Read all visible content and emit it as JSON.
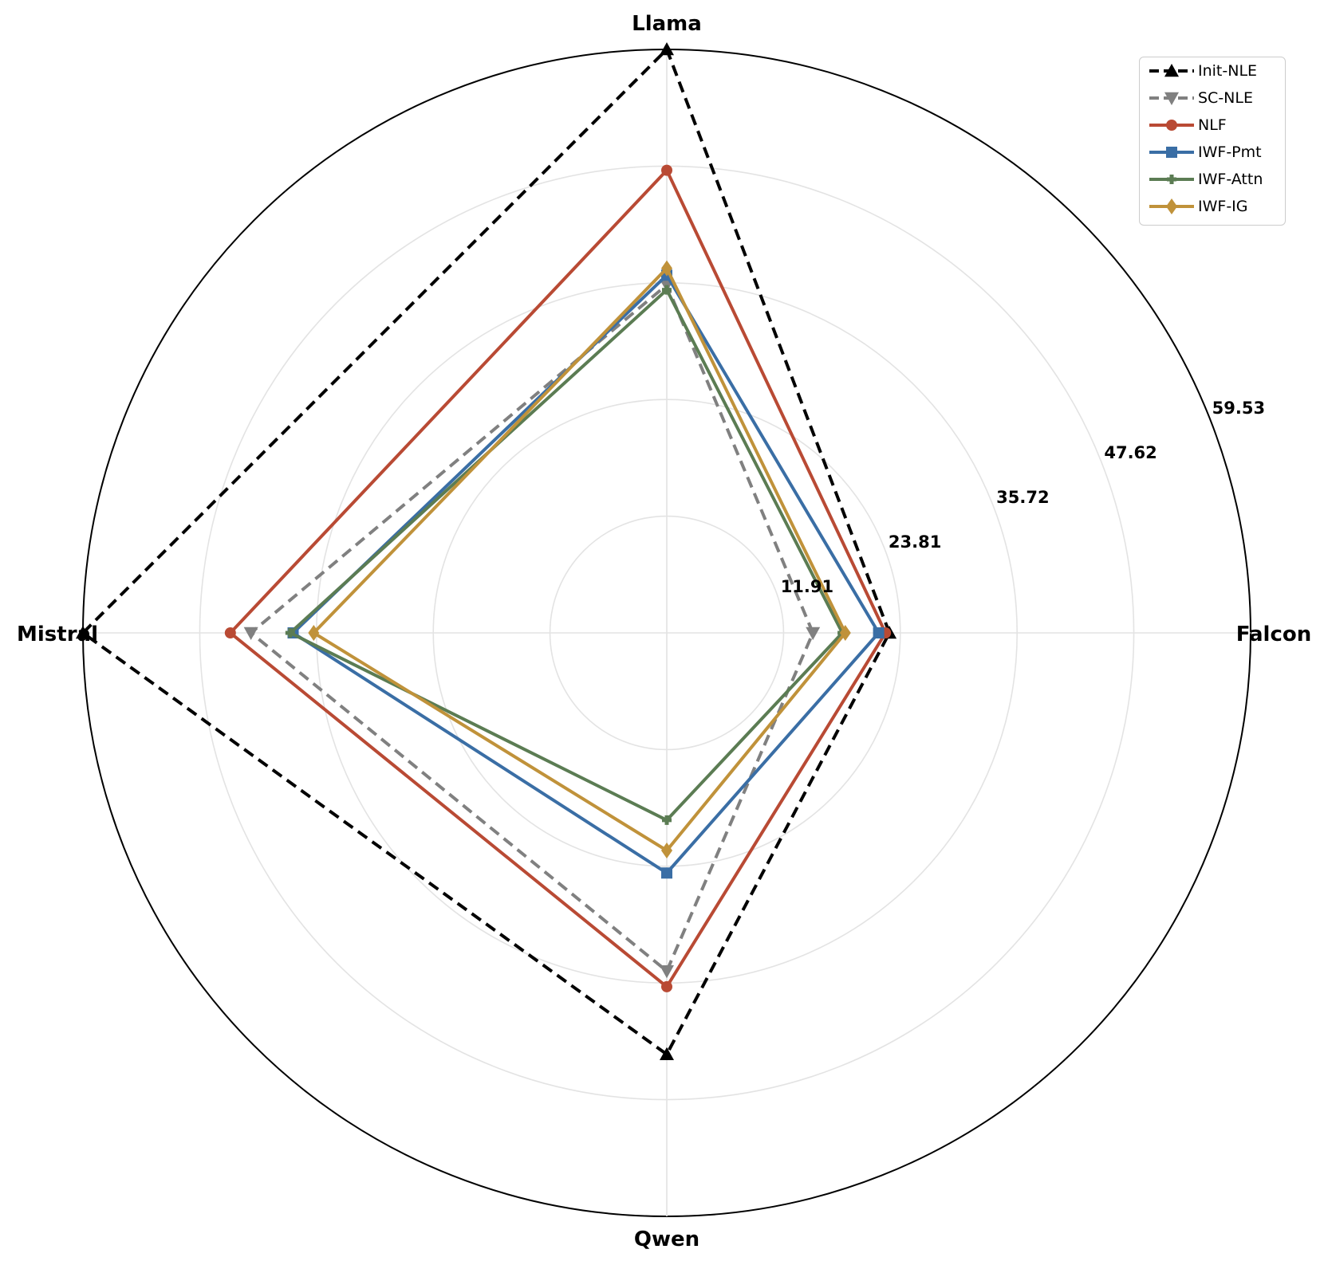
{
  "chart_data": {
    "type": "radar",
    "axes": [
      "Falcon",
      "Llama",
      "Mistral",
      "Qwen"
    ],
    "rlim": [
      0,
      59.53
    ],
    "tick_values": [
      11.91,
      23.81,
      35.72,
      47.62,
      59.53
    ],
    "tick_labels": [
      "11.91",
      "23.81",
      "35.72",
      "47.62",
      "59.53"
    ],
    "grid": true,
    "legend_position": "top-right",
    "series": [
      {
        "name": "Init-NLE",
        "values": [
          22.7,
          59.53,
          59.53,
          43.0
        ],
        "color": "#000000",
        "dash": true,
        "marker": "triangle-up"
      },
      {
        "name": "SC-NLE",
        "values": [
          14.9,
          35.5,
          42.4,
          34.5
        ],
        "color": "#808080",
        "dash": true,
        "marker": "triangle-down"
      },
      {
        "name": "NLF",
        "values": [
          22.3,
          47.2,
          44.5,
          36.1
        ],
        "color": "#b94a34",
        "dash": false,
        "marker": "circle"
      },
      {
        "name": "IWF-Pmt",
        "values": [
          21.6,
          36.5,
          38.1,
          24.5
        ],
        "color": "#3a6ea5",
        "dash": false,
        "marker": "square"
      },
      {
        "name": "IWF-Attn",
        "values": [
          17.9,
          35.0,
          38.4,
          19.1
        ],
        "color": "#5b7c53",
        "dash": false,
        "marker": "plus"
      },
      {
        "name": "IWF-IG",
        "values": [
          18.2,
          37.2,
          36.0,
          22.2
        ],
        "color": "#c0923a",
        "dash": false,
        "marker": "diamond"
      }
    ]
  }
}
